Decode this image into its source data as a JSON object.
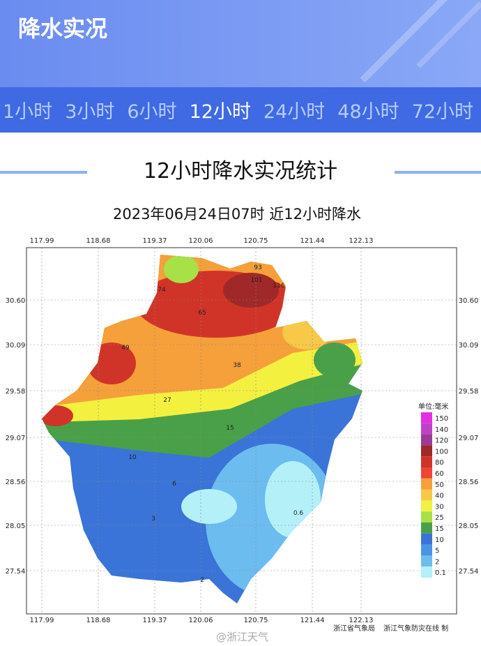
{
  "header": {
    "title": "降水实况"
  },
  "tabs": [
    {
      "label": "1小时",
      "selected": false
    },
    {
      "label": "3小时",
      "selected": false
    },
    {
      "label": "6小时",
      "selected": false
    },
    {
      "label": "12小时",
      "selected": true
    },
    {
      "label": "24小时",
      "selected": false
    },
    {
      "label": "48小时",
      "selected": false
    },
    {
      "label": "72小时",
      "selected": false
    }
  ],
  "section": {
    "title": "12小时降水实况统计"
  },
  "map": {
    "title": "2023年06月24日07时  近12小时降水",
    "lon_labels": [
      "117.99",
      "118.68",
      "119.37",
      "120.06",
      "120.75",
      "121.44",
      "122.13"
    ],
    "lat_labels": [
      "30.60",
      "30.09",
      "29.58",
      "29.07",
      "28.56",
      "28.05",
      "27.54"
    ],
    "stations": [
      "101",
      "116",
      "74",
      "93",
      "65",
      "49",
      "38",
      "27",
      "15",
      "10",
      "6",
      "3",
      "0.6",
      "2"
    ],
    "legend": {
      "unit": "单位:毫米",
      "levels": [
        {
          "label": "150",
          "color": "#e030e0"
        },
        {
          "label": "140",
          "color": "#c040c8"
        },
        {
          "label": "120",
          "color": "#9c3a98"
        },
        {
          "label": "100",
          "color": "#a02828"
        },
        {
          "label": "80",
          "color": "#d03428"
        },
        {
          "label": "60",
          "color": "#f04434"
        },
        {
          "label": "50",
          "color": "#f5a03a"
        },
        {
          "label": "40",
          "color": "#f8c848"
        },
        {
          "label": "30",
          "color": "#f4f040"
        },
        {
          "label": "25",
          "color": "#a8e048"
        },
        {
          "label": "15",
          "color": "#4aa048"
        },
        {
          "label": "10",
          "color": "#3a74d8"
        },
        {
          "label": "5",
          "color": "#4a94e4"
        },
        {
          "label": "2",
          "color": "#6cbcf0"
        },
        {
          "label": "0.1",
          "color": "#b4f0f8"
        }
      ]
    },
    "credits": [
      "浙江省气象局",
      "浙江气象防灾在线 制"
    ],
    "watermark": "@浙江天气"
  }
}
